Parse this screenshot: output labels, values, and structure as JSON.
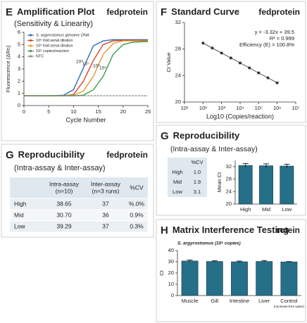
{
  "chart_data": [
    {
      "type": "line",
      "label": "E",
      "title": "Amplification Plot",
      "subtitle": "(Sensitivity & Linearity)",
      "brand": "fedprotein",
      "x_label": "Cycle Number",
      "y_label": "Fluorescence (ΔRn)",
      "x": [
        0,
        3,
        6,
        8,
        10,
        12,
        14,
        16,
        18,
        20,
        22,
        25
      ],
      "series": [
        {
          "name": "S. argyrostomus genomic DNA",
          "color": "#2f6db5",
          "values": [
            0.8,
            0.8,
            0.81,
            0.85,
            1.3,
            3.1,
            4.9,
            5.3,
            5.4,
            5.4,
            5.4,
            5.4
          ]
        },
        {
          "name": "10⁶ fold serial dilution",
          "color": "#d9412b",
          "values": [
            0.8,
            0.8,
            0.8,
            0.8,
            0.9,
            2.0,
            3.7,
            5.0,
            5.3,
            5.35,
            5.35,
            5.35
          ]
        },
        {
          "name": "10⁴ fold serial dilution",
          "color": "#e8962e",
          "values": [
            0.8,
            0.8,
            0.8,
            0.8,
            0.83,
            1.2,
            2.4,
            4.2,
            5.1,
            5.3,
            5.3,
            5.3
          ]
        },
        {
          "name": "10⁵ copies/reaction",
          "color": "#3a9d4a",
          "values": [
            0.8,
            0.8,
            0.8,
            0.8,
            0.8,
            0.85,
            1.3,
            2.4,
            4.2,
            5.0,
            5.2,
            5.25
          ]
        },
        {
          "name": "NTC",
          "color": "#8a8a8a",
          "values": [
            0.8,
            0.8,
            0.8,
            0.8,
            0.8,
            0.8,
            0.8,
            0.8,
            0.8,
            0.8,
            0.8,
            0.8
          ]
        }
      ],
      "annotations": [
        "10⁸",
        "10⁷",
        "10⁶",
        "10⁵"
      ],
      "xlim": [
        0,
        25
      ],
      "xticks": [
        0,
        5,
        10,
        15,
        20,
        25
      ],
      "ylim": [
        0,
        6
      ],
      "yticks": [
        0,
        1,
        2,
        3,
        4,
        5,
        6
      ],
      "legend": "upper left"
    },
    {
      "type": "scatter",
      "label": "F",
      "title": "Standard Curve",
      "brand": "fedprotein",
      "x_label": "Log10 (Copies/reaction)",
      "y_label": "Ct Value",
      "log_x": true,
      "color": "#333333",
      "x": [
        100,
        316,
        1000,
        3162,
        10000,
        31623,
        100000,
        316228,
        1000000
      ],
      "values": [
        28.9,
        28.15,
        27.4,
        26.65,
        25.9,
        25.15,
        24.4,
        23.65,
        22.9
      ],
      "annotations": [
        "y = -3.32x + 39.5",
        "R² = 0.999",
        "Efficiency (E) = 100.8%"
      ],
      "xlim": [
        10,
        10000000
      ],
      "xticks": [
        {
          "value": 10,
          "label": "10¹"
        },
        {
          "value": 100,
          "label": "10²"
        },
        {
          "value": 1000,
          "label": "10³"
        },
        {
          "value": 10000,
          "label": "10⁴"
        },
        {
          "value": 100000,
          "label": "10⁵"
        },
        {
          "value": 1000000,
          "label": "10⁶"
        },
        {
          "value": 10000000,
          "label": "10⁷"
        }
      ],
      "ylim": [
        20,
        32
      ],
      "yticks": [
        20,
        24,
        28,
        32
      ]
    },
    {
      "type": "bar",
      "label": "G",
      "title": "Reproducibility",
      "subtitle": "(Intra-assay & Inter-assay)",
      "y_label": "Mean Ct",
      "color": "#256f88",
      "categories": [
        "High",
        "Mid",
        "Low"
      ],
      "values": [
        32.4,
        32.3,
        32.2
      ],
      "errors": [
        0.6,
        0.6,
        0.6
      ],
      "ylim": [
        20,
        34
      ],
      "yticks": [
        20,
        24,
        28,
        32
      ],
      "table": {
        "header": "%CV",
        "rows": [
          [
            "High",
            "1.0"
          ],
          [
            "Mid",
            "1.9"
          ],
          [
            "Low",
            "3.1"
          ]
        ]
      }
    },
    {
      "type": "bar",
      "label": "H",
      "title": "Matrix Interference Testing",
      "brand": "rotein",
      "subtitle": "S. argyrostomus (10⁶ copies)",
      "y_label": "Ct",
      "color": "#256f88",
      "categories": [
        "Muscle",
        "Gill",
        "Intestine",
        "Liver",
        "Control"
      ],
      "category_note": "(nuclease-free water)",
      "values": [
        30.7,
        30.3,
        30.0,
        30.3,
        29.9
      ],
      "errors": [
        0.8,
        0.6,
        0.6,
        0.8,
        0.3
      ],
      "ylim": [
        0,
        40
      ],
      "yticks": [
        0,
        10,
        20,
        30,
        40
      ]
    }
  ],
  "table": {
    "label": "G",
    "title": "Reproducibility",
    "subtitle": "(Intra-assay & Inter-assay)",
    "brand": "fedprotein",
    "header": [
      [
        "Intra-assay",
        "(n=10)"
      ],
      [
        "Inter-assay",
        "(n=3 runs)"
      ],
      [
        "%CV"
      ]
    ],
    "rows": [
      [
        "High",
        "38.65",
        "37",
        "%.0%"
      ],
      [
        "Mid",
        "30.70",
        "36",
        "0.9%"
      ],
      [
        "Low",
        "39.29",
        "37",
        "0.3%"
      ]
    ]
  }
}
